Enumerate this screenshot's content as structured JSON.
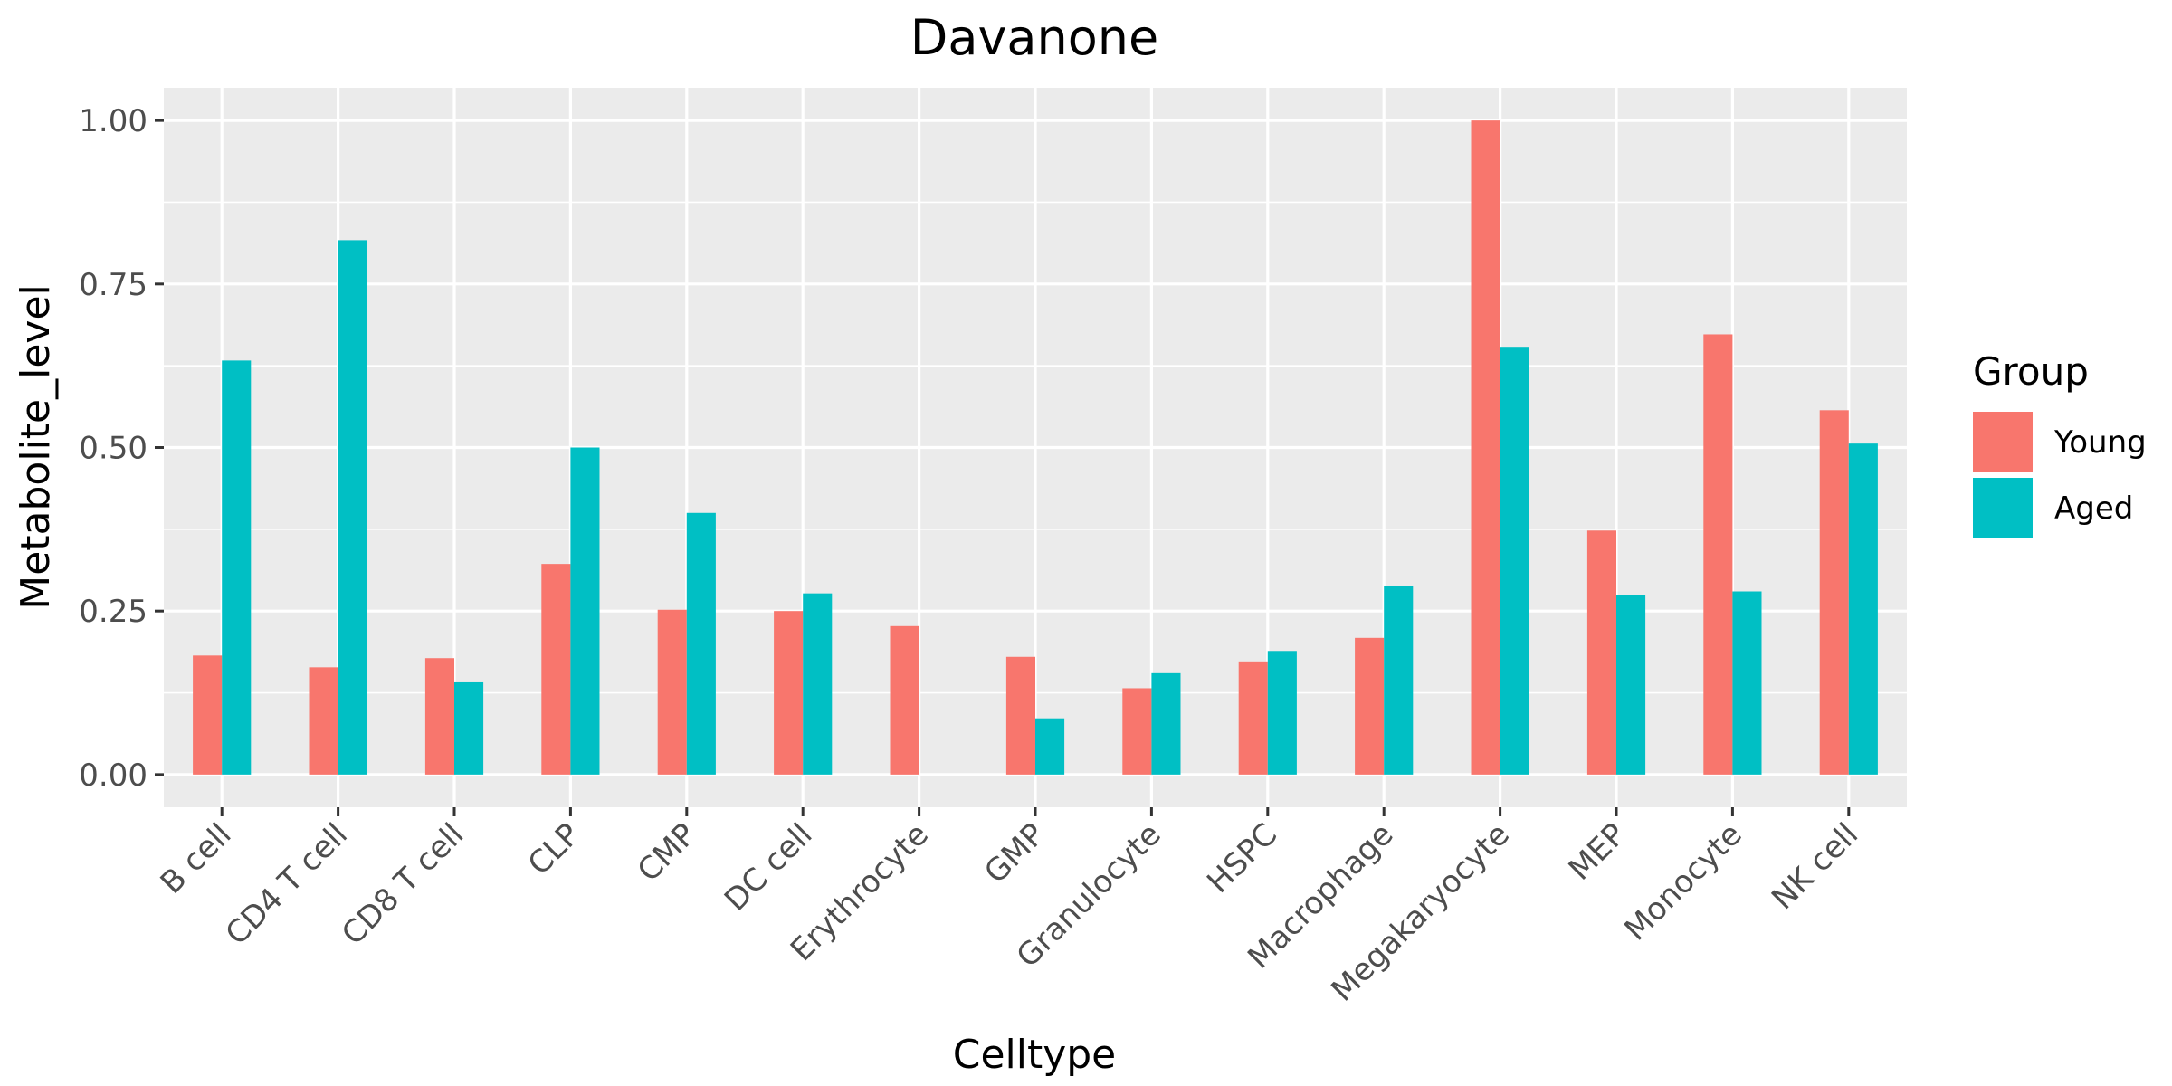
{
  "chart_data": {
    "type": "bar",
    "title": "Davanone",
    "xlabel": "Celltype",
    "ylabel": "Metabolite_level",
    "ylim": [
      -0.05,
      1.05
    ],
    "yticks": [
      "0.00",
      "0.25",
      "0.50",
      "0.75",
      "1.00"
    ],
    "grid": true,
    "legend_position": "right",
    "legend_title": "Group",
    "categories": [
      "B cell",
      "CD4 T cell",
      "CD8 T cell",
      "CLP",
      "CMP",
      "DC cell",
      "Erythrocyte",
      "GMP",
      "Granulocyte",
      "HSPC",
      "Macrophage",
      "Megakaryocyte",
      "MEP",
      "Monocyte",
      "NK cell"
    ],
    "series": [
      {
        "name": "Young",
        "color": "#F8766D",
        "values": [
          0.182,
          0.164,
          0.178,
          0.322,
          0.252,
          0.25,
          0.227,
          0.18,
          0.132,
          0.173,
          0.209,
          1.0,
          0.373,
          0.673,
          0.557
        ]
      },
      {
        "name": "Aged",
        "color": "#00BFC4",
        "values": [
          0.633,
          0.817,
          0.141,
          0.5,
          0.4,
          0.277,
          null,
          0.086,
          0.155,
          0.189,
          0.289,
          0.654,
          0.275,
          0.28,
          0.506
        ]
      }
    ],
    "panel_background": "#EBEBEB",
    "grid_color": "#FFFFFF"
  }
}
